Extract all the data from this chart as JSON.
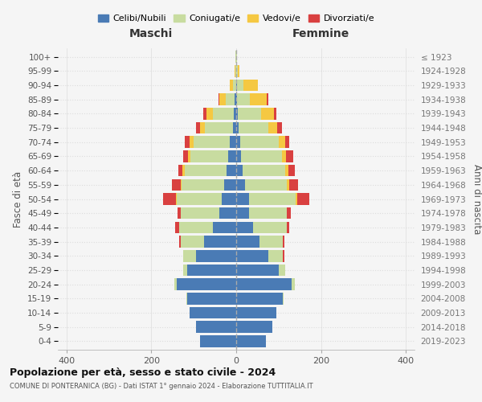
{
  "age_groups": [
    "0-4",
    "5-9",
    "10-14",
    "15-19",
    "20-24",
    "25-29",
    "30-34",
    "35-39",
    "40-44",
    "45-49",
    "50-54",
    "55-59",
    "60-64",
    "65-69",
    "70-74",
    "75-79",
    "80-84",
    "85-89",
    "90-94",
    "95-99",
    "100+"
  ],
  "birth_years": [
    "2019-2023",
    "2014-2018",
    "2009-2013",
    "2004-2008",
    "1999-2003",
    "1994-1998",
    "1989-1993",
    "1984-1988",
    "1979-1983",
    "1974-1978",
    "1969-1973",
    "1964-1968",
    "1959-1963",
    "1954-1958",
    "1949-1953",
    "1944-1948",
    "1939-1943",
    "1934-1938",
    "1929-1933",
    "1924-1928",
    "≤ 1923"
  ],
  "maschi": {
    "celibi": [
      85,
      95,
      110,
      115,
      140,
      115,
      95,
      75,
      55,
      40,
      35,
      28,
      22,
      18,
      15,
      8,
      5,
      3,
      0,
      0,
      0
    ],
    "coniugati": [
      0,
      0,
      0,
      2,
      5,
      10,
      30,
      55,
      80,
      90,
      105,
      100,
      100,
      90,
      85,
      65,
      50,
      22,
      8,
      2,
      1
    ],
    "vedovi": [
      0,
      0,
      0,
      0,
      0,
      0,
      0,
      0,
      0,
      0,
      2,
      3,
      5,
      5,
      10,
      12,
      15,
      15,
      8,
      1,
      0
    ],
    "divorziati": [
      0,
      0,
      0,
      0,
      0,
      0,
      0,
      5,
      8,
      8,
      30,
      20,
      10,
      12,
      12,
      10,
      8,
      2,
      0,
      0,
      0
    ]
  },
  "femmine": {
    "nubili": [
      70,
      85,
      95,
      110,
      130,
      100,
      75,
      55,
      40,
      30,
      30,
      20,
      15,
      12,
      10,
      5,
      4,
      2,
      2,
      0,
      0
    ],
    "coniugate": [
      0,
      0,
      0,
      2,
      8,
      15,
      35,
      55,
      80,
      90,
      110,
      100,
      100,
      95,
      90,
      70,
      55,
      30,
      15,
      3,
      1
    ],
    "vedove": [
      0,
      0,
      0,
      0,
      0,
      0,
      0,
      0,
      0,
      0,
      3,
      5,
      8,
      10,
      15,
      22,
      30,
      40,
      35,
      5,
      1
    ],
    "divorziate": [
      0,
      0,
      0,
      0,
      0,
      0,
      3,
      3,
      5,
      8,
      30,
      20,
      15,
      18,
      10,
      10,
      5,
      3,
      0,
      0,
      0
    ]
  },
  "colors": {
    "celibi": "#4a7bb5",
    "coniugati": "#c8dca0",
    "vedovi": "#f5c842",
    "divorziati": "#d94040"
  },
  "xlim": 420,
  "xticks": [
    -400,
    -200,
    0,
    200,
    400
  ],
  "title": "Popolazione per età, sesso e stato civile - 2024",
  "subtitle": "COMUNE DI PONTERANICA (BG) - Dati ISTAT 1° gennaio 2024 - Elaborazione TUTTITALIA.IT",
  "ylabel_left": "Fasce di età",
  "ylabel_right": "Anni di nascita",
  "xlabel_maschi": "Maschi",
  "xlabel_femmine": "Femmine",
  "legend_labels": [
    "Celibi/Nubili",
    "Coniugati/e",
    "Vedovi/e",
    "Divorziati/e"
  ],
  "bg_color": "#f5f5f5",
  "grid_color": "#dddddd"
}
